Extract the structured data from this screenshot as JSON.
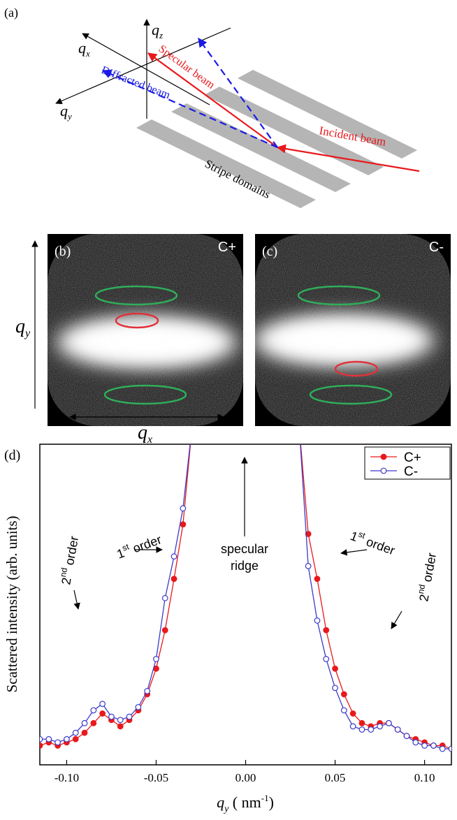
{
  "panel_a": {
    "label": "(a)",
    "axes": [
      {
        "symbol": "q",
        "sub": "z"
      },
      {
        "symbol": "q",
        "sub": "x"
      },
      {
        "symbol": "q",
        "sub": "y"
      }
    ],
    "beams": {
      "specular": "Specular beam",
      "diffracted": "Diffracted beam",
      "incident": "Incident beam"
    },
    "sample": "Stripe domains"
  },
  "panel_b": {
    "label": "(b)",
    "polarization": "C+"
  },
  "panel_c": {
    "label": "(c)",
    "polarization": "C-"
  },
  "detector_axes": [
    {
      "symbol": "q",
      "sub": "y"
    },
    {
      "symbol": "q",
      "sub": "x"
    }
  ],
  "chart_data": {
    "type": "line",
    "panel_label": "(d)",
    "ylabel": "Scattered intensity (arb. units)",
    "xlabel": {
      "symbol": "q",
      "sub": "y",
      "unit_open": " ( nm",
      "sup": "-1",
      "unit_close": ")"
    },
    "x": [
      -0.115,
      -0.11,
      -0.105,
      -0.1,
      -0.095,
      -0.09,
      -0.085,
      -0.08,
      -0.075,
      -0.07,
      -0.065,
      -0.06,
      -0.055,
      -0.05,
      -0.045,
      -0.04,
      -0.035,
      -0.03,
      0,
      0.03,
      0.035,
      0.04,
      0.045,
      0.05,
      0.055,
      0.06,
      0.065,
      0.07,
      0.075,
      0.08,
      0.085,
      0.09,
      0.095,
      0.1,
      0.105,
      0.11,
      0.115
    ],
    "series": [
      {
        "name": "C+",
        "color": "#e8191c",
        "marker": "filled",
        "values": [
          0.06,
          0.07,
          0.06,
          0.07,
          0.08,
          0.1,
          0.13,
          0.16,
          0.14,
          0.12,
          0.14,
          0.17,
          0.22,
          0.3,
          0.42,
          0.58,
          0.75,
          1.05,
          null,
          1.05,
          0.72,
          0.58,
          0.42,
          0.3,
          0.22,
          0.16,
          0.13,
          0.12,
          0.13,
          0.13,
          0.11,
          0.09,
          0.08,
          0.07,
          0.06,
          0.06,
          0.05
        ]
      },
      {
        "name": "C-",
        "color": "#3b3bc8",
        "marker": "hollow",
        "values": [
          0.08,
          0.08,
          0.07,
          0.08,
          0.1,
          0.13,
          0.17,
          0.19,
          0.15,
          0.14,
          0.15,
          0.18,
          0.23,
          0.33,
          0.52,
          0.65,
          0.8,
          1.05,
          null,
          1.05,
          0.62,
          0.45,
          0.33,
          0.24,
          0.17,
          0.12,
          0.11,
          0.11,
          0.12,
          0.13,
          0.11,
          0.09,
          0.07,
          0.06,
          0.06,
          0.05,
          0.05
        ]
      }
    ],
    "xlim": [
      -0.115,
      0.115
    ],
    "xticks": [
      {
        "value": -0.1,
        "label": "-0.10"
      },
      {
        "value": -0.05,
        "label": "-0.05"
      },
      {
        "value": 0,
        "label": "0.00"
      },
      {
        "value": 0.05,
        "label": "0.05"
      },
      {
        "value": 0.1,
        "label": "0.10"
      }
    ],
    "ylim": [
      0,
      1
    ],
    "legend": "top-right",
    "annotations": [
      {
        "base": "1",
        "sup": "st",
        "rest": " order"
      },
      {
        "base": "2",
        "sup": "nd",
        "rest": " order"
      },
      {
        "lines": [
          "specular",
          "ridge"
        ]
      },
      {
        "base": "1",
        "sup": "st",
        "rest": " order"
      },
      {
        "base": "2",
        "sup": "nd",
        "rest": " order"
      }
    ]
  }
}
